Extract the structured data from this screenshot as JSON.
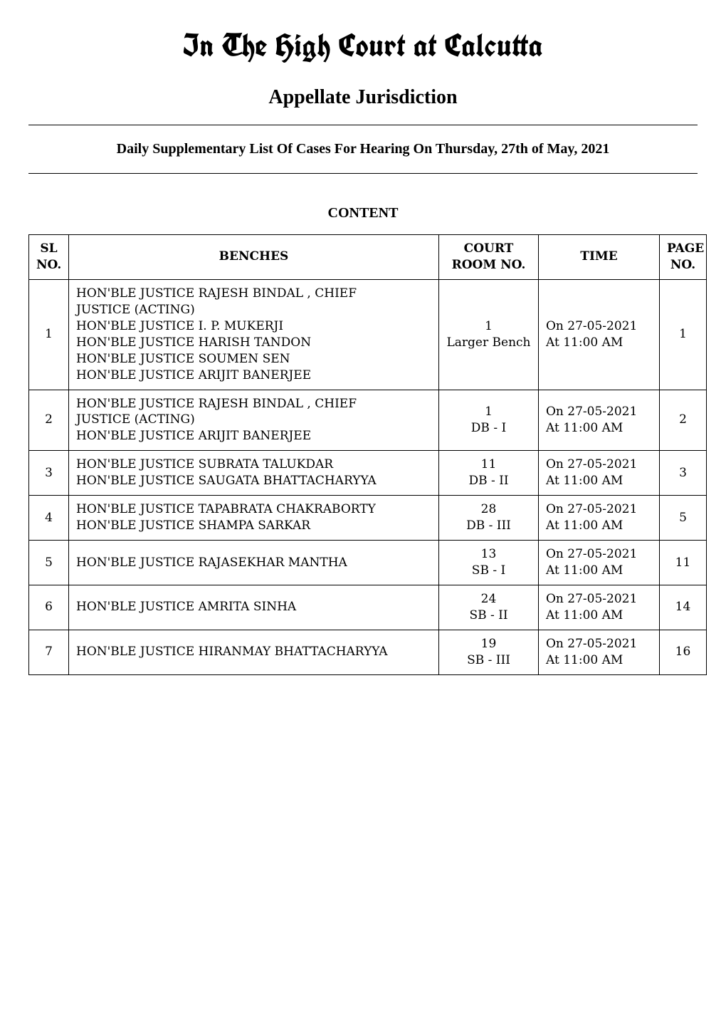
{
  "header": {
    "masthead": "In The High Court at Calcutta",
    "subtitle": "Appellate Jurisdiction",
    "daily_line": "Daily Supplementary List Of Cases For Hearing On Thursday, 27th of May, 2021",
    "content_label": "CONTENT"
  },
  "table": {
    "columns": {
      "sl": {
        "line1": "SL",
        "line2": "NO."
      },
      "benches": "BENCHES",
      "court_room": {
        "line1": "COURT",
        "line2": "ROOM NO."
      },
      "time": "TIME",
      "page": {
        "line1": "PAGE",
        "line2": "NO."
      }
    },
    "rows": [
      {
        "sl": "1",
        "bench_lines": [
          "HON'BLE JUSTICE RAJESH BINDAL , CHIEF",
          "JUSTICE (ACTING)",
          "HON'BLE JUSTICE I. P. MUKERJI",
          "HON'BLE JUSTICE HARISH TANDON",
          "HON'BLE JUSTICE SOUMEN SEN",
          "HON'BLE JUSTICE ARIJIT BANERJEE"
        ],
        "room_lines": [
          "1",
          "Larger Bench"
        ],
        "time_lines": [
          "On 27-05-2021",
          "At 11:00 AM"
        ],
        "page": "1"
      },
      {
        "sl": "2",
        "bench_lines": [
          "HON'BLE JUSTICE RAJESH BINDAL , CHIEF",
          "JUSTICE (ACTING)",
          "HON'BLE JUSTICE ARIJIT BANERJEE"
        ],
        "room_lines": [
          "1",
          "DB - I"
        ],
        "time_lines": [
          "On 27-05-2021",
          "At 11:00 AM"
        ],
        "page": "2"
      },
      {
        "sl": "3",
        "bench_lines": [
          "HON'BLE JUSTICE SUBRATA TALUKDAR",
          "HON'BLE JUSTICE SAUGATA BHATTACHARYYA"
        ],
        "room_lines": [
          "11",
          "DB - II"
        ],
        "time_lines": [
          "On 27-05-2021",
          "At 11:00 AM"
        ],
        "page": "3"
      },
      {
        "sl": "4",
        "bench_lines": [
          "HON'BLE JUSTICE TAPABRATA CHAKRABORTY",
          "HON'BLE JUSTICE SHAMPA SARKAR"
        ],
        "room_lines": [
          "28",
          "DB - III"
        ],
        "time_lines": [
          "On 27-05-2021",
          "At 11:00 AM"
        ],
        "page": "5"
      },
      {
        "sl": "5",
        "bench_lines": [
          "HON'BLE JUSTICE RAJASEKHAR MANTHA"
        ],
        "room_lines": [
          "13",
          "SB - I"
        ],
        "time_lines": [
          "On 27-05-2021",
          "At 11:00 AM"
        ],
        "page": "11"
      },
      {
        "sl": "6",
        "bench_lines": [
          "HON'BLE JUSTICE AMRITA SINHA"
        ],
        "room_lines": [
          "24",
          "SB - II"
        ],
        "time_lines": [
          "On 27-05-2021",
          "At 11:00 AM"
        ],
        "page": "14"
      },
      {
        "sl": "7",
        "bench_lines": [
          "HON'BLE JUSTICE HIRANMAY BHATTACHARYYA"
        ],
        "room_lines": [
          "19",
          "SB - III"
        ],
        "time_lines": [
          "On 27-05-2021",
          "At 11:00 AM"
        ],
        "page": "16"
      }
    ]
  }
}
